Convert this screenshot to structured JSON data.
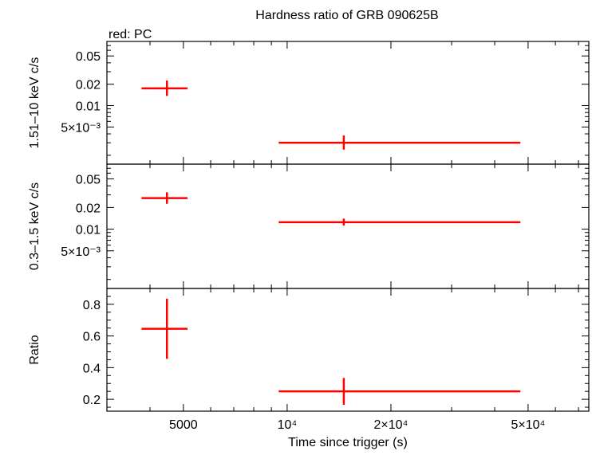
{
  "title": "Hardness ratio of GRB 090625B",
  "legend_note": "red: PC",
  "colors": {
    "series": "#ff0000",
    "axes": "#000000",
    "background": "#ffffff"
  },
  "chart_data": [
    {
      "type": "scatter",
      "panel": "hard",
      "ylabel": "1.51–10 keV c/s",
      "yscale": "log",
      "ylim": [
        0.0015,
        0.08
      ],
      "yticks": [
        {
          "value": 0.05,
          "label": "0.05"
        },
        {
          "value": 0.02,
          "label": "0.02"
        },
        {
          "value": 0.01,
          "label": "0.01"
        },
        {
          "value": 0.005,
          "label": "5×10⁻³"
        }
      ],
      "series": [
        {
          "name": "PC",
          "color": "#ff0000",
          "points": [
            {
              "x": 4480,
              "xlo": 3780,
              "xhi": 5140,
              "y": 0.0175,
              "ylo": 0.0137,
              "yhi": 0.0225
            },
            {
              "x": 14600,
              "xlo": 9450,
              "xhi": 47500,
              "y": 0.003,
              "ylo": 0.0024,
              "yhi": 0.0038
            }
          ]
        }
      ]
    },
    {
      "type": "scatter",
      "panel": "soft",
      "ylabel": "0.3–1.5 keV c/s",
      "yscale": "log",
      "ylim": [
        0.0015,
        0.08
      ],
      "yticks": [
        {
          "value": 0.05,
          "label": "0.05"
        },
        {
          "value": 0.02,
          "label": "0.02"
        },
        {
          "value": 0.01,
          "label": "0.01"
        },
        {
          "value": 0.005,
          "label": "5×10⁻³"
        }
      ],
      "series": [
        {
          "name": "PC",
          "color": "#ff0000",
          "points": [
            {
              "x": 4480,
              "xlo": 3780,
              "xhi": 5140,
              "y": 0.027,
              "ylo": 0.0225,
              "yhi": 0.0325
            },
            {
              "x": 14600,
              "xlo": 9450,
              "xhi": 47500,
              "y": 0.0125,
              "ylo": 0.0112,
              "yhi": 0.014
            }
          ]
        }
      ]
    },
    {
      "type": "scatter",
      "panel": "ratio",
      "ylabel": "Ratio",
      "xlabel": "Time since trigger (s)",
      "xscale": "log",
      "xlim": [
        3000,
        75000
      ],
      "xticks": [
        {
          "value": 5000,
          "label": "5000"
        },
        {
          "value": 10000,
          "label": "10⁴"
        },
        {
          "value": 20000,
          "label": "2×10⁴"
        },
        {
          "value": 50000,
          "label": "5×10⁴"
        }
      ],
      "yscale": "linear",
      "ylim": [
        0.125,
        0.9
      ],
      "yticks": [
        {
          "value": 0.8,
          "label": "0.8"
        },
        {
          "value": 0.6,
          "label": "0.6"
        },
        {
          "value": 0.4,
          "label": "0.4"
        },
        {
          "value": 0.2,
          "label": "0.2"
        }
      ],
      "series": [
        {
          "name": "PC",
          "color": "#ff0000",
          "points": [
            {
              "x": 4480,
              "xlo": 3780,
              "xhi": 5140,
              "y": 0.645,
              "ylo": 0.455,
              "yhi": 0.835
            },
            {
              "x": 14600,
              "xlo": 9450,
              "xhi": 47500,
              "y": 0.25,
              "ylo": 0.165,
              "yhi": 0.335
            }
          ]
        }
      ]
    }
  ]
}
